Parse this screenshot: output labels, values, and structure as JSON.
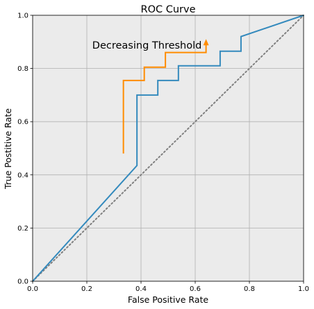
{
  "chart_data": {
    "type": "line",
    "title": "ROC Curve",
    "xlabel": "False Positive Rate",
    "ylabel": "True Postitive Rate",
    "xlim": [
      0.0,
      1.0
    ],
    "ylim": [
      0.0,
      1.0
    ],
    "xticks": [
      "0.0",
      "0.2",
      "0.4",
      "0.6",
      "0.8",
      "1.0"
    ],
    "yticks": [
      "0.0",
      "0.2",
      "0.4",
      "0.6",
      "0.8",
      "1.0"
    ],
    "grid": true,
    "background": "#ebebeb",
    "series": [
      {
        "role": "roc",
        "color": "#348abd",
        "points": [
          [
            0.0,
            0.0
          ],
          [
            0.385,
            0.435
          ],
          [
            0.385,
            0.7
          ],
          [
            0.462,
            0.7
          ],
          [
            0.462,
            0.755
          ],
          [
            0.538,
            0.755
          ],
          [
            0.538,
            0.81
          ],
          [
            0.692,
            0.81
          ],
          [
            0.692,
            0.865
          ],
          [
            0.769,
            0.865
          ],
          [
            0.769,
            0.92
          ],
          [
            1.0,
            1.0
          ]
        ]
      },
      {
        "role": "diagonal",
        "color": "#808080",
        "style": "dotted",
        "points": [
          [
            0.0,
            0.0
          ],
          [
            1.0,
            1.0
          ]
        ]
      },
      {
        "role": "threshold-arrow",
        "color": "#ff8c00",
        "points": [
          [
            0.335,
            0.48
          ],
          [
            0.335,
            0.755
          ],
          [
            0.412,
            0.755
          ],
          [
            0.412,
            0.805
          ],
          [
            0.49,
            0.805
          ],
          [
            0.49,
            0.86
          ],
          [
            0.64,
            0.86
          ],
          [
            0.64,
            0.895
          ]
        ]
      }
    ],
    "annotation": {
      "text": "Decreasing Threshold",
      "x": 0.22,
      "y": 0.875
    }
  }
}
